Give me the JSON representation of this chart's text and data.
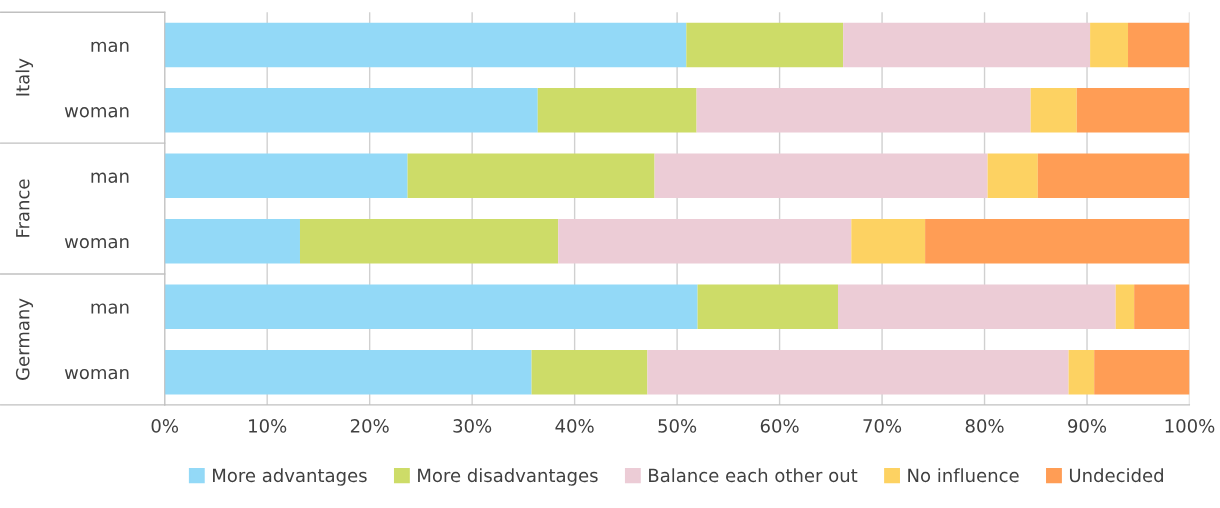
{
  "chart_data": {
    "type": "bar",
    "orientation": "horizontal",
    "stacked": true,
    "categories": [
      "man",
      "woman",
      "man",
      "woman",
      "man",
      "woman"
    ],
    "annotations": [
      "Italy",
      "France",
      "Germany"
    ],
    "series": [
      {
        "name": "More advantages",
        "color": "#93d9f7",
        "values": [
          50.9,
          36.4,
          23.7,
          13.2,
          52.0,
          35.8
        ]
      },
      {
        "name": "More disadvantages",
        "color": "#cddc68",
        "values": [
          15.3,
          15.5,
          24.1,
          25.2,
          13.7,
          11.3
        ]
      },
      {
        "name": "Balance each other out",
        "color": "#ecccd6",
        "values": [
          24.1,
          32.6,
          32.5,
          28.6,
          27.1,
          41.1
        ]
      },
      {
        "name": "No influence",
        "color": "#fdd262",
        "values": [
          3.7,
          4.5,
          4.9,
          7.2,
          1.8,
          2.5
        ]
      },
      {
        "name": "Undecided",
        "color": "#ff9d55",
        "values": [
          6.0,
          11.0,
          14.8,
          25.8,
          5.4,
          9.3
        ]
      }
    ],
    "xlim": [
      0,
      100
    ],
    "xticks": [
      {
        "value": 0,
        "label": "0%"
      },
      {
        "value": 10,
        "label": "10%"
      },
      {
        "value": 20,
        "label": "20%"
      },
      {
        "value": 30,
        "label": "30%"
      },
      {
        "value": 40,
        "label": "40%"
      },
      {
        "value": 50,
        "label": "50%"
      },
      {
        "value": 60,
        "label": "60%"
      },
      {
        "value": 70,
        "label": "70%"
      },
      {
        "value": 80,
        "label": "80%"
      },
      {
        "value": 90,
        "label": "90%"
      },
      {
        "value": 100,
        "label": "100%"
      }
    ],
    "grid": "x",
    "legend": "bottom"
  }
}
